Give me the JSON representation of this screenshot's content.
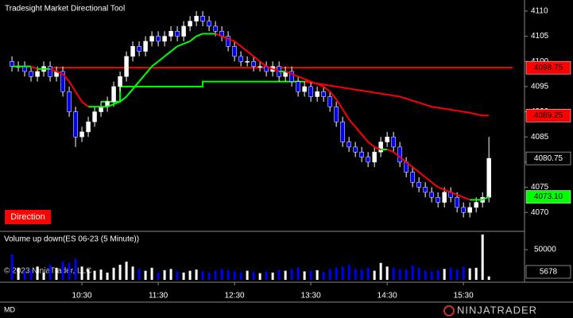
{
  "chart_data": {
    "type": "candlestick",
    "title": "Tradesight Market Directional Tool",
    "signal_label": "Direction",
    "volume_title": "Volume up down(ES 06-23 (5 Minute))",
    "copyright": "© 2023 NinjaTrader, LLC",
    "footer_left": "MD",
    "logo": "NINJATRADER",
    "up_color": "#ffffff",
    "down_color": "#0000ff",
    "xlim": [
      565.6,
      978
    ],
    "xticks": [
      {
        "value": 630,
        "label": "10:30"
      },
      {
        "value": 690,
        "label": "11:30"
      },
      {
        "value": 750,
        "label": "12:30"
      },
      {
        "value": 810,
        "label": "13:30"
      },
      {
        "value": 870,
        "label": "14:30"
      },
      {
        "value": 930,
        "label": "15:30"
      }
    ],
    "ylim": [
      4066.4,
      4112.2
    ],
    "yticks": [
      4070,
      4075,
      4080,
      4085,
      4090,
      4095,
      4100,
      4105,
      4110
    ],
    "candles": {
      "x": [
        575,
        580,
        585,
        590,
        595,
        600,
        605,
        610,
        615,
        620,
        625,
        630,
        635,
        640,
        645,
        650,
        655,
        660,
        665,
        670,
        675,
        680,
        685,
        690,
        695,
        700,
        705,
        710,
        715,
        720,
        725,
        730,
        735,
        740,
        745,
        750,
        755,
        760,
        765,
        770,
        775,
        780,
        785,
        790,
        795,
        800,
        805,
        810,
        815,
        820,
        825,
        830,
        835,
        840,
        845,
        850,
        855,
        860,
        865,
        870,
        875,
        880,
        885,
        890,
        895,
        900,
        905,
        910,
        915,
        920,
        925,
        930,
        935,
        940,
        945,
        950
      ],
      "open": [
        4100,
        4099,
        4099,
        4098,
        4097,
        4098,
        4099,
        4097,
        4098,
        4094,
        4090,
        4085,
        4086,
        4088,
        4090,
        4091,
        4092,
        4095,
        4097,
        4101,
        4103,
        4102,
        4104,
        4105,
        4104,
        4105,
        4106,
        4105,
        4107,
        4108,
        4109,
        4108,
        4107,
        4106,
        4105,
        4103,
        4101,
        4100,
        4100,
        4099,
        4099,
        4098,
        4099,
        4097,
        4098,
        4096,
        4094,
        4095,
        4093,
        4094,
        4093,
        4091,
        4088,
        4084,
        4083,
        4082,
        4081,
        4080,
        4082,
        4084,
        4085,
        4083,
        4080,
        4078,
        4076,
        4075,
        4074,
        4073,
        4072,
        4074,
        4073,
        4071,
        4070,
        4071,
        4072,
        4073
      ],
      "high": [
        4101,
        4100,
        4100,
        4099,
        4099,
        4100,
        4100,
        4099,
        4099,
        4095,
        4091,
        4087,
        4089,
        4091,
        4092,
        4093,
        4096,
        4098,
        4102,
        4104,
        4104,
        4105,
        4106,
        4106,
        4106,
        4107,
        4107,
        4108,
        4109,
        4110,
        4110,
        4109,
        4108,
        4107,
        4106,
        4104,
        4102,
        4101,
        4101,
        4100,
        4100,
        4100,
        4100,
        4099,
        4099,
        4097,
        4096,
        4096,
        4095,
        4095,
        4094,
        4092,
        4089,
        4085,
        4084,
        4083,
        4082,
        4083,
        4085,
        4086,
        4086,
        4084,
        4081,
        4079,
        4077,
        4076,
        4075,
        4074,
        4075,
        4075,
        4074,
        4072,
        4072,
        4073,
        4074,
        4085
      ],
      "low": [
        4098,
        4098,
        4097,
        4096,
        4096,
        4097,
        4096,
        4096,
        4093,
        4089,
        4083,
        4084,
        4085,
        4087,
        4089,
        4090,
        4091,
        4094,
        4096,
        4100,
        4101,
        4101,
        4103,
        4103,
        4103,
        4104,
        4104,
        4104,
        4106,
        4107,
        4107,
        4106,
        4105,
        4104,
        4102,
        4100,
        4099,
        4099,
        4098,
        4098,
        4097,
        4097,
        4096,
        4096,
        4095,
        4093,
        4093,
        4092,
        4092,
        4092,
        4090,
        4087,
        4083,
        4082,
        4081,
        4080,
        4079,
        4079,
        4081,
        4083,
        4082,
        4079,
        4077,
        4075,
        4074,
        4073,
        4072,
        4071,
        4071,
        4072,
        4070,
        4069,
        4069,
        4070,
        4071,
        4072
      ],
      "close": [
        4099,
        4099,
        4098,
        4097,
        4098,
        4099,
        4097,
        4098,
        4094,
        4090,
        4085,
        4086,
        4088,
        4090,
        4091,
        4092,
        4095,
        4097,
        4101,
        4103,
        4102,
        4104,
        4105,
        4104,
        4105,
        4106,
        4105,
        4107,
        4108,
        4109,
        4108,
        4107,
        4106,
        4105,
        4103,
        4101,
        4100,
        4100,
        4099,
        4099,
        4098,
        4099,
        4097,
        4098,
        4096,
        4094,
        4095,
        4093,
        4094,
        4093,
        4091,
        4088,
        4084,
        4083,
        4082,
        4081,
        4080,
        4082,
        4084,
        4085,
        4083,
        4080,
        4078,
        4076,
        4075,
        4074,
        4073,
        4072,
        4074,
        4073,
        4071,
        4070,
        4071,
        4072,
        4073,
        4080.75
      ]
    },
    "fast_line": {
      "up_color": "#00ff00",
      "down_color": "#ff0000",
      "values": [
        4099,
        4099,
        4099,
        4099,
        4098.5,
        4098.5,
        4098.5,
        4098,
        4097.5,
        4096,
        4094,
        4092,
        4091,
        4091,
        4091,
        4091,
        4091.5,
        4092,
        4093,
        4094.5,
        4096,
        4097.5,
        4099,
        4100,
        4101,
        4102,
        4103,
        4103.5,
        4104,
        4105,
        4105.5,
        4105.5,
        4105.5,
        4105,
        4104.5,
        4104,
        4103,
        4102,
        4101,
        4100,
        4099,
        4098.5,
        4098,
        4098,
        4097.5,
        4097,
        4096.5,
        4096,
        4095.5,
        4095,
        4094,
        4092.5,
        4090.5,
        4088.5,
        4087,
        4085.5,
        4084,
        4083,
        4082.5,
        4082.5,
        4082,
        4081,
        4080,
        4079,
        4078,
        4077,
        4076,
        4075,
        4074.5,
        4074,
        4073.5,
        4073,
        4072.5,
        4072.5,
        4072.5,
        4073.1
      ],
      "value_label": "4073.10"
    },
    "slow_line": {
      "color": "#ff0000",
      "values": [
        null,
        null,
        null,
        null,
        null,
        null,
        null,
        null,
        null,
        null,
        null,
        null,
        null,
        null,
        null,
        null,
        null,
        null,
        null,
        null,
        null,
        null,
        null,
        null,
        null,
        null,
        null,
        null,
        null,
        null,
        null,
        null,
        null,
        null,
        null,
        null,
        null,
        null,
        null,
        null,
        null,
        null,
        null,
        null,
        null,
        null,
        4096,
        4095.8,
        4095.6,
        4095.4,
        4095.2,
        4095,
        4094.8,
        4094.6,
        4094.4,
        4094.2,
        4094,
        4093.8,
        4093.6,
        4093.4,
        4093.2,
        4093,
        4092.6,
        4092.2,
        4091.8,
        4091.4,
        4091,
        4090.8,
        4090.6,
        4090.4,
        4090.2,
        4090,
        4089.8,
        4089.5,
        4089.25,
        4089.25
      ]
    },
    "step_line": {
      "color": "#00ff00",
      "values": [
        null,
        null,
        null,
        null,
        null,
        null,
        null,
        null,
        null,
        null,
        null,
        null,
        null,
        null,
        4092,
        4092,
        4092,
        4092,
        4095,
        4095,
        4095,
        4095,
        4095,
        4095,
        4095,
        4095,
        4095,
        4095,
        4095,
        4095,
        4095,
        4096,
        4096,
        4096,
        4096,
        4096,
        4096,
        4096,
        4096,
        4096,
        4096,
        4096,
        4096,
        4096,
        4096,
        4096,
        4096,
        4096,
        null,
        null,
        null,
        null,
        null,
        null,
        null,
        null,
        null,
        null,
        null,
        null,
        null,
        null,
        null,
        null,
        null,
        null,
        null,
        null,
        null,
        null,
        null,
        null,
        null,
        null,
        null,
        null
      ]
    },
    "level": 4098.75,
    "level_color": "#ff0000",
    "volume": {
      "ylim": [
        0,
        79000
      ],
      "yticks": [
        50000
      ],
      "values": [
        42000,
        20000,
        15000,
        18000,
        22000,
        12000,
        25000,
        20000,
        30000,
        28000,
        35000,
        22000,
        18000,
        15000,
        17000,
        12000,
        20000,
        25000,
        30000,
        22000,
        18000,
        15000,
        20000,
        12000,
        16000,
        18000,
        14000,
        12000,
        15000,
        17000,
        14000,
        12000,
        15000,
        18000,
        16000,
        14000,
        12000,
        15000,
        13000,
        11000,
        14000,
        12000,
        16000,
        15000,
        18000,
        20000,
        14000,
        15000,
        16000,
        13000,
        18000,
        20000,
        22000,
        25000,
        18000,
        17000,
        20000,
        15000,
        28000,
        22000,
        20000,
        18000,
        17000,
        24000,
        20000,
        15000,
        14000,
        16000,
        18000,
        20000,
        17000,
        22000,
        19000,
        20000,
        75000,
        5678
      ]
    }
  }
}
